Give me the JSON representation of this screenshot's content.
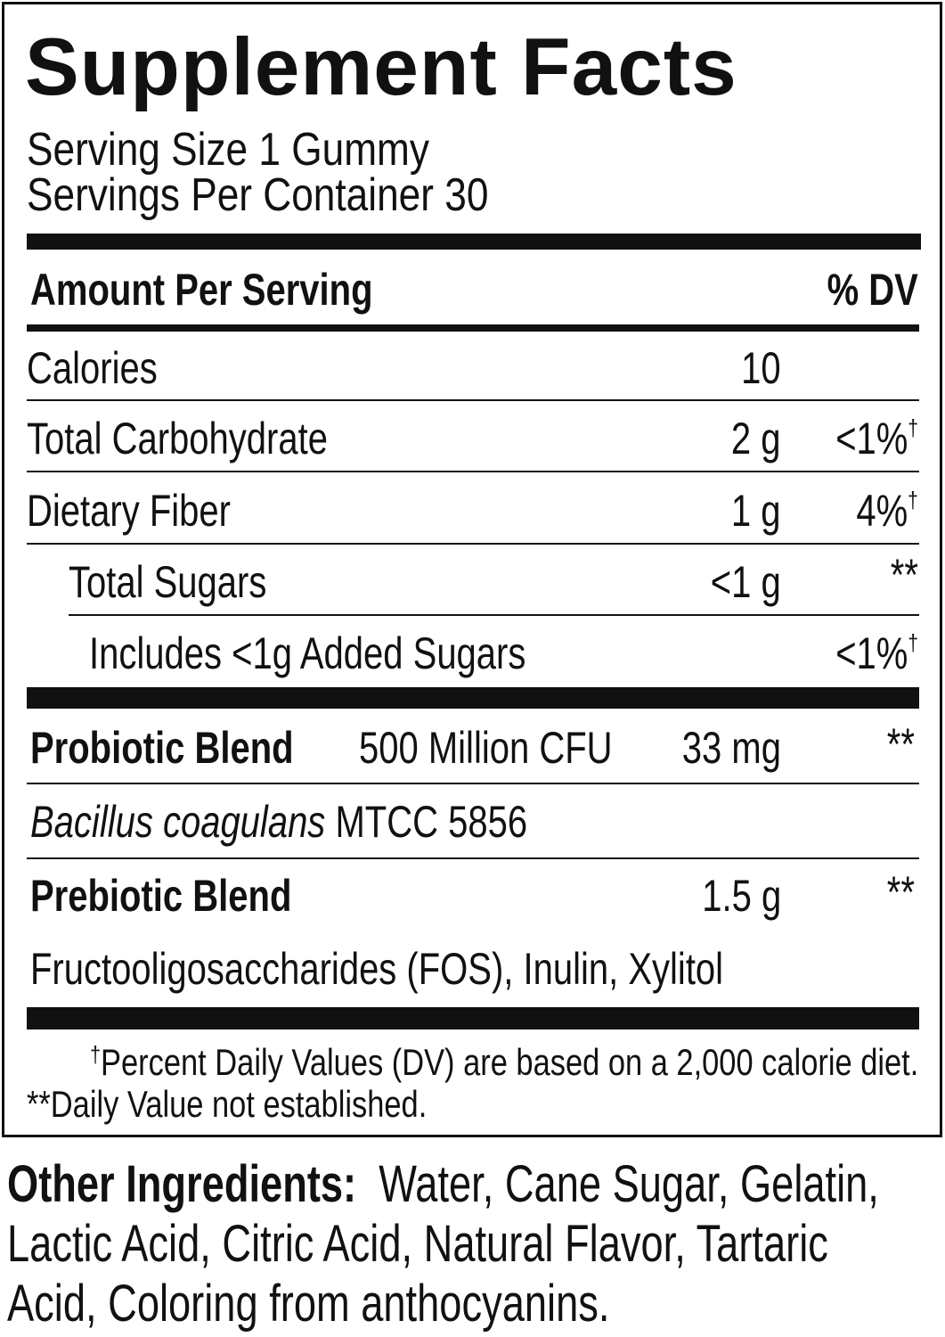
{
  "title": "Supplement Facts",
  "serving_size": "Serving Size 1 Gummy",
  "servings_per_container": "Servings Per Container 30",
  "header": {
    "amount": "Amount Per Serving",
    "dv": "% DV"
  },
  "rows": [
    {
      "name": "Calories",
      "amount": "10"
    },
    {
      "name": "Total Carbohydrate",
      "amount": "2 g",
      "dv": "<1%",
      "dv_mark": "†"
    },
    {
      "name": "Dietary Fiber",
      "amount": "1 g",
      "dv": "4%",
      "dv_mark": "†"
    },
    {
      "name": "Total Sugars",
      "amount": "<1 g",
      "dv": "**"
    },
    {
      "name": "Includes <1g Added Sugars",
      "dv": "<1%",
      "dv_mark": "†"
    }
  ],
  "blends": [
    {
      "name": "Probiotic Blend",
      "count": "500 Million CFU",
      "amount": "33 mg",
      "dv": "**",
      "detail": {
        "species": "Bacillus coagulans",
        "strain": "MTCC 5856"
      }
    },
    {
      "name": "Prebiotic Blend",
      "amount": "1.5 g",
      "dv": "**",
      "detail": {
        "text": "Fructooligosaccharides (FOS), Inulin, Xylitol"
      }
    }
  ],
  "footnotes": [
    {
      "mark": "†",
      "text": "Percent Daily Values (DV) are based on a 2,000 calorie diet."
    },
    {
      "text": "**Daily Value not established."
    }
  ],
  "other_ingredients": {
    "label": "Other Ingredients:",
    "lines": [
      "Water, Cane Sugar, Gelatin,",
      "Lactic Acid, Citric Acid, Natural Flavor, Tartaric",
      "Acid, Coloring from anthocyanins."
    ]
  }
}
